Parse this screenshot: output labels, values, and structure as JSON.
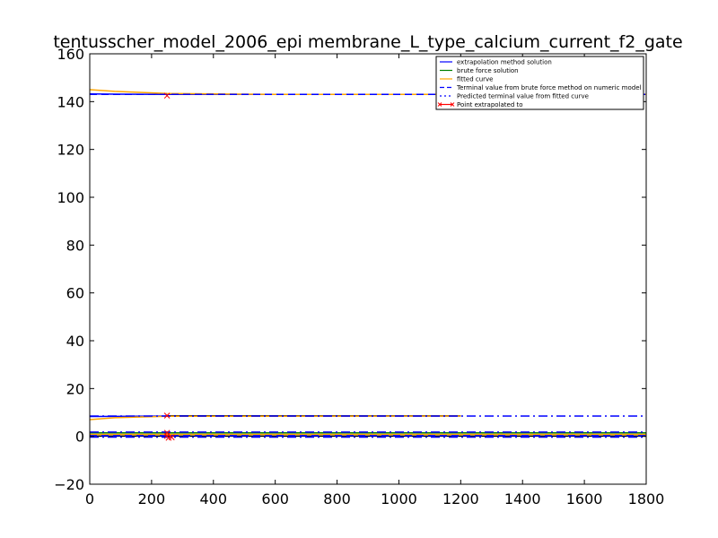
{
  "chart_data": {
    "type": "line",
    "title": "tentusscher_model_2006_epi membrane_L_type_calcium_current_f2_gate",
    "xlabel": "",
    "ylabel": "",
    "xlim": [
      0,
      1800
    ],
    "ylim": [
      -20,
      160
    ],
    "xticks": [
      0,
      200,
      400,
      600,
      800,
      1000,
      1200,
      1400,
      1600,
      1800
    ],
    "yticks": [
      -20,
      0,
      20,
      40,
      60,
      80,
      100,
      120,
      140,
      160
    ],
    "grid": false,
    "legend_position": "top-right",
    "legend": [
      "extrapolation method solution",
      "brute force solution",
      "fitted curve",
      "Terminal value from brute force method on numeric model",
      "Predicted terminal value from fitted curve",
      "Point extrapolated to"
    ],
    "colors": {
      "extrapolation": "#0000ff",
      "brute_force": "#008000",
      "fitted": "#ffa500",
      "terminal_brute": "#0000ff",
      "terminal_pred": "#0000ff",
      "point": "#ff0000",
      "black": "#000000"
    },
    "series": [
      {
        "role": "extrapolation",
        "points": [
          [
            0,
            143.2
          ],
          [
            250,
            143.0
          ],
          [
            1800,
            143.0
          ]
        ]
      },
      {
        "role": "fitted",
        "points": [
          [
            0,
            145.0
          ],
          [
            80,
            144.3
          ],
          [
            250,
            143.4
          ],
          [
            600,
            143.0
          ],
          [
            1000,
            143.0
          ],
          [
            1800,
            143.0
          ]
        ]
      },
      {
        "role": "terminal_brute",
        "style": "dashed",
        "points": [
          [
            0,
            143.0
          ],
          [
            1800,
            143.0
          ]
        ]
      },
      {
        "role": "extrapolation",
        "points": [
          [
            0,
            8.3
          ],
          [
            250,
            8.5
          ],
          [
            1200,
            8.5
          ]
        ]
      },
      {
        "role": "black",
        "points": [
          [
            250,
            8.6
          ],
          [
            1200,
            8.6
          ]
        ]
      },
      {
        "role": "fitted",
        "points": [
          [
            0,
            7.0
          ],
          [
            80,
            7.8
          ],
          [
            250,
            8.4
          ],
          [
            1200,
            8.5
          ]
        ]
      },
      {
        "role": "terminal_pred",
        "style": "dashdot",
        "points": [
          [
            0,
            8.5
          ],
          [
            1800,
            8.5
          ]
        ]
      },
      {
        "role": "brute_force",
        "points": [
          [
            0,
            1.5
          ],
          [
            1800,
            1.5
          ]
        ]
      },
      {
        "role": "fitted",
        "points": [
          [
            0,
            0.8
          ],
          [
            1800,
            0.8
          ]
        ]
      },
      {
        "role": "black",
        "points": [
          [
            0,
            0.1
          ],
          [
            1800,
            0.1
          ]
        ]
      },
      {
        "role": "terminal_brute",
        "style": "dashed",
        "points": [
          [
            0,
            0.3
          ],
          [
            1800,
            0.3
          ]
        ]
      },
      {
        "role": "terminal_pred",
        "style": "dashdot",
        "points": [
          [
            0,
            1.8
          ],
          [
            1800,
            1.8
          ]
        ]
      },
      {
        "role": "terminal_pred",
        "style": "dashdot",
        "points": [
          [
            0,
            -0.3
          ],
          [
            1800,
            -0.3
          ]
        ]
      }
    ],
    "points_extrapolated": [
      [
        250,
        142.5
      ],
      [
        250,
        8.7
      ],
      [
        250,
        1.5
      ],
      [
        250,
        0.2
      ],
      [
        255,
        -0.6
      ],
      [
        265,
        -0.4
      ]
    ]
  }
}
